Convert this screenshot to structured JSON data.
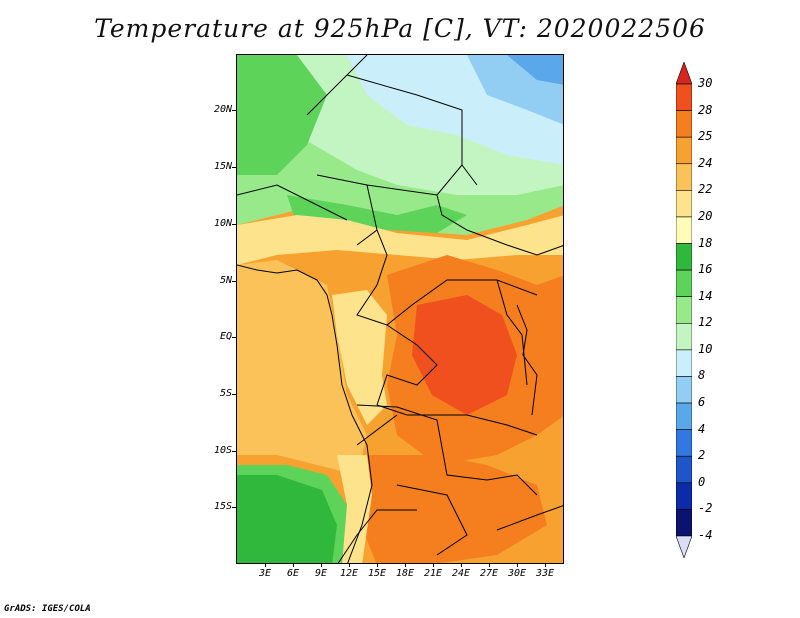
{
  "title": "Temperature at 925hPa [C], VT: 2020022506",
  "credit": "GrADS: IGES/COLA",
  "y_axis_labels": [
    "20N",
    "15N",
    "10N",
    "5N",
    "EQ",
    "5S",
    "10S",
    "15S"
  ],
  "x_axis_labels": [
    "3E",
    "6E",
    "9E",
    "12E",
    "15E",
    "18E",
    "21E",
    "24E",
    "27E",
    "30E",
    "33E"
  ],
  "colorbar": {
    "labels": [
      "30",
      "28",
      "25",
      "24",
      "22",
      "20",
      "18",
      "16",
      "14",
      "12",
      "10",
      "8",
      "6",
      "4",
      "2",
      "0",
      "-2",
      "-4"
    ],
    "colors": [
      "#d7261e",
      "#f0501e",
      "#f57e1e",
      "#f7a131",
      "#fbc25a",
      "#fde38c",
      "#fefcb8",
      "#2fb83c",
      "#5ed35a",
      "#97e98a",
      "#c3f5c3",
      "#cbeffa",
      "#92cdf3",
      "#5aa7ea",
      "#3278e0",
      "#1e55c8",
      "#0c2ba8",
      "#0a1470",
      "#dcdcf5"
    ]
  }
}
